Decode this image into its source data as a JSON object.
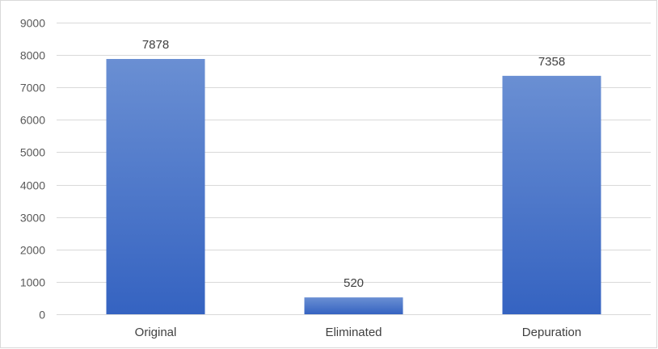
{
  "chart_data": {
    "type": "bar",
    "categories": [
      "Original",
      "Eliminated",
      "Depuration"
    ],
    "values": [
      7878,
      520,
      7358
    ],
    "data_labels": [
      "7878",
      "520",
      "7358"
    ],
    "ylim": [
      0,
      9000
    ],
    "yticks": [
      0,
      1000,
      2000,
      3000,
      4000,
      5000,
      6000,
      7000,
      8000,
      9000
    ],
    "ytick_labels": [
      "0",
      "1000",
      "2000",
      "3000",
      "4000",
      "5000",
      "6000",
      "7000",
      "8000",
      "9000"
    ],
    "grid": true,
    "legend": "none",
    "colors": {
      "bar_top": "#6a8fd3",
      "bar_bottom": "#3563c1",
      "grid": "#d9d9d9"
    }
  }
}
